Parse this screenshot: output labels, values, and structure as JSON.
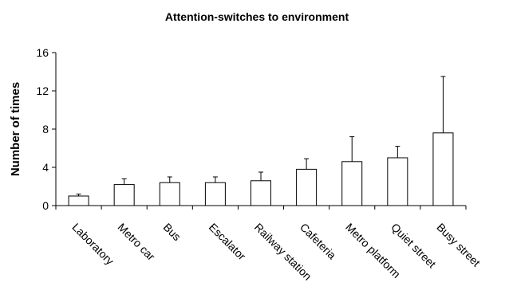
{
  "chart_data": {
    "type": "bar",
    "title": "Attention-switches to environment",
    "xlabel": "",
    "ylabel": "Number of times",
    "ylim": [
      0,
      16
    ],
    "yticks": [
      0,
      4,
      8,
      12,
      16
    ],
    "categories": [
      "Laboratory",
      "Metro car",
      "Bus",
      "Escalator",
      "Railway station",
      "Cafeteria",
      "Metro platform",
      "Quiet street",
      "Busy street"
    ],
    "values": [
      1.0,
      2.2,
      2.4,
      2.4,
      2.6,
      3.8,
      4.6,
      5.0,
      7.6
    ],
    "error_upper": [
      0.2,
      0.6,
      0.6,
      0.6,
      0.9,
      1.1,
      2.6,
      1.2,
      5.9
    ],
    "bar_color": "#ffffff",
    "edge_color": "#000000",
    "grid": false,
    "legend": "none"
  }
}
